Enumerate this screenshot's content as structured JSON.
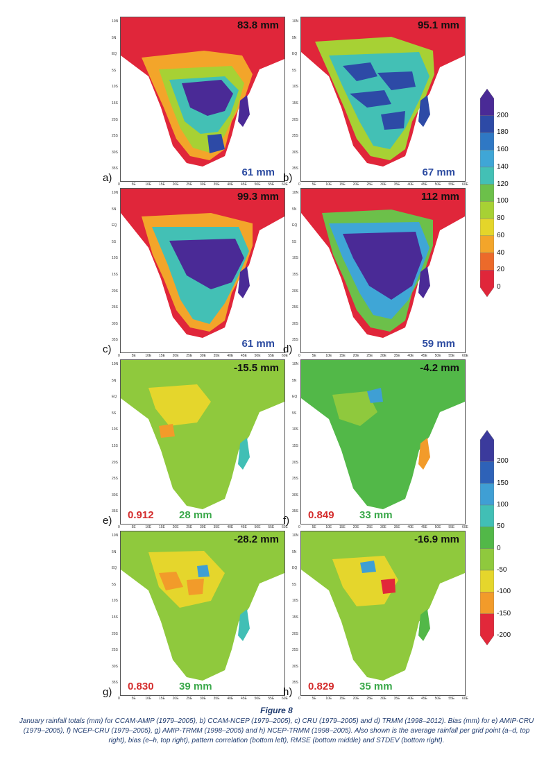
{
  "figure": {
    "title": "Figure 8",
    "caption": "January rainfall totals (mm) for CCAM-AMIP (1979–2005), b) CCAM-NCEP (1979–2005), c) CRU (1979–2005) and d) TRMM (1998–2012). Bias (mm) for e) AMIP-CRU (1979–2005), f) NCEP-CRU (1979–2005), g) AMIP-TRMM (1998–2005) and h) NCEP-TRMM (1998–2005). Also shown is the average rainfall per grid point (a–d, top right), bias (e–h, top right), pattern correlation (bottom left), RMSE (bottom middle) and STDEV (bottom right)."
  },
  "colors": {
    "accent_stat_blue": "#2b4aa0",
    "corr_red": "#d42d2d",
    "stdev_green": "#3aa84a"
  },
  "chart_data": [
    {
      "type": "heatmap",
      "panel": "a)",
      "title": "CCAM-AMIP (1979–2005) January rainfall",
      "mean": "83.8 mm",
      "stdev": "61 mm"
    },
    {
      "type": "heatmap",
      "panel": "b)",
      "title": "CCAM-NCEP (1979–2005) January rainfall",
      "mean": "95.1 mm",
      "stdev": "67 mm"
    },
    {
      "type": "heatmap",
      "panel": "c)",
      "title": "CRU (1979–2005) January rainfall",
      "mean": "99.3 mm",
      "stdev": "61 mm"
    },
    {
      "type": "heatmap",
      "panel": "d)",
      "title": "TRMM (1998–2012) January rainfall",
      "mean": "112 mm",
      "stdev": "59 mm"
    },
    {
      "type": "heatmap",
      "panel": "e)",
      "title": "Bias AMIP-CRU (1979–2005)",
      "bias": "-15.5 mm",
      "correlation": "0.912",
      "rmse": "28 mm"
    },
    {
      "type": "heatmap",
      "panel": "f)",
      "title": "Bias NCEP-CRU (1979–2005)",
      "bias": "-4.2 mm",
      "correlation": "0.849",
      "rmse": "33 mm"
    },
    {
      "type": "heatmap",
      "panel": "g)",
      "title": "Bias AMIP-TRMM (1998–2005)",
      "bias": "-28.2 mm",
      "correlation": "0.830",
      "rmse": "39 mm"
    },
    {
      "type": "heatmap",
      "panel": "h)",
      "title": "Bias NCEP-TRMM (1998–2005)",
      "bias": "-16.9 mm",
      "correlation": "0.829",
      "rmse": "35 mm"
    }
  ],
  "colorbar_totals": {
    "labels": [
      "200",
      "180",
      "160",
      "140",
      "120",
      "100",
      "80",
      "60",
      "40",
      "20",
      "0"
    ],
    "colors": [
      "#4a2a96",
      "#2d4aa6",
      "#2f78c4",
      "#3fa6d6",
      "#43c0b5",
      "#6cc04a",
      "#a7d134",
      "#e4d52a",
      "#f3a52a",
      "#ec6a2a",
      "#e0263a"
    ]
  },
  "colorbar_bias": {
    "labels": [
      "200",
      "150",
      "100",
      "50",
      "0",
      "-50",
      "-100",
      "-150",
      "-200"
    ],
    "colors": [
      "#3b3a9c",
      "#2e62b8",
      "#3f9fd4",
      "#41bfb5",
      "#52b848",
      "#8fc93d",
      "#e5d62c",
      "#f29b2a",
      "#e2283a"
    ]
  },
  "axis_ticks": {
    "lon": [
      "0",
      "5E",
      "10E",
      "15E",
      "20E",
      "25E",
      "30E",
      "35E",
      "40E",
      "45E",
      "50E",
      "55E",
      "60E"
    ],
    "lat": [
      "10N",
      "5N",
      "EQ",
      "5S",
      "10S",
      "15S",
      "20S",
      "25S",
      "30S",
      "35S"
    ]
  }
}
